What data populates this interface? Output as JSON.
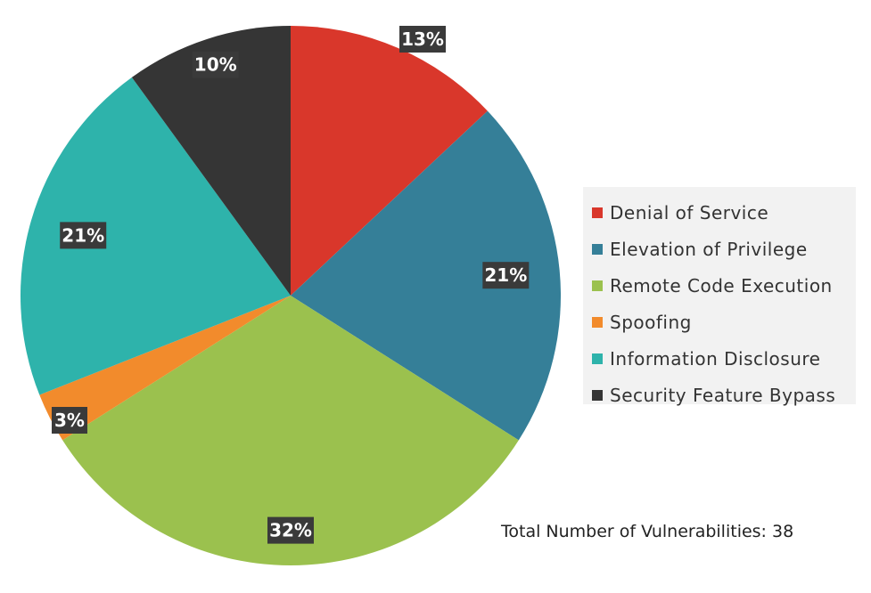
{
  "chart_data": {
    "type": "pie",
    "slices": [
      {
        "label": "Denial of Service",
        "value": 13,
        "display": "13%",
        "color": "#d9372b"
      },
      {
        "label": "Elevation of Privilege",
        "value": 21,
        "display": "21%",
        "color": "#357f98"
      },
      {
        "label": "Remote Code Execution",
        "value": 32,
        "display": "32%",
        "color": "#9bc14e"
      },
      {
        "label": "Spoofing",
        "value": 3,
        "display": "3%",
        "color": "#f28b2c"
      },
      {
        "label": "Information Disclosure",
        "value": 21,
        "display": "21%",
        "color": "#2eb3ab"
      },
      {
        "label": "Security Feature Bypass",
        "value": 10,
        "display": "10%",
        "color": "#353535"
      }
    ],
    "legend_position": "right",
    "start_angle": "12 o'clock, clockwise"
  },
  "footer": {
    "total_text": "Total Number of Vulnerabilities: 38"
  }
}
